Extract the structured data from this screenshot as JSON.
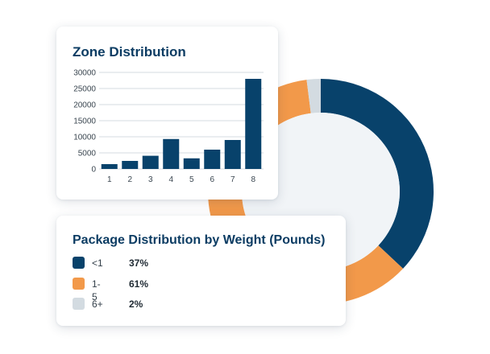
{
  "colors": {
    "navy": "#08426b",
    "orange": "#f2994a",
    "light_gray": "#d3dbe1",
    "donut_hole": "#f1f4f7",
    "title": "#0c3c63",
    "grid": "#d6dbe0"
  },
  "chart_data": [
    {
      "type": "bar",
      "title": "Zone Distribution",
      "categories": [
        "1",
        "2",
        "3",
        "4",
        "5",
        "6",
        "7",
        "8"
      ],
      "values": [
        1500,
        2500,
        4100,
        9300,
        3300,
        6000,
        9000,
        28000
      ],
      "ylim": [
        0,
        30000
      ],
      "yticks": [
        "30000",
        "25000",
        "20000",
        "15000",
        "10000",
        "5000",
        "0"
      ],
      "grid": true,
      "xlabel": "",
      "ylabel": ""
    },
    {
      "type": "pie",
      "title": "Package Distribution by Weight (Pounds)",
      "categories": [
        "<1",
        "1-5",
        "6+"
      ],
      "values": [
        37,
        61,
        2
      ],
      "labels": [
        "37%",
        "61%",
        "2%"
      ]
    }
  ]
}
